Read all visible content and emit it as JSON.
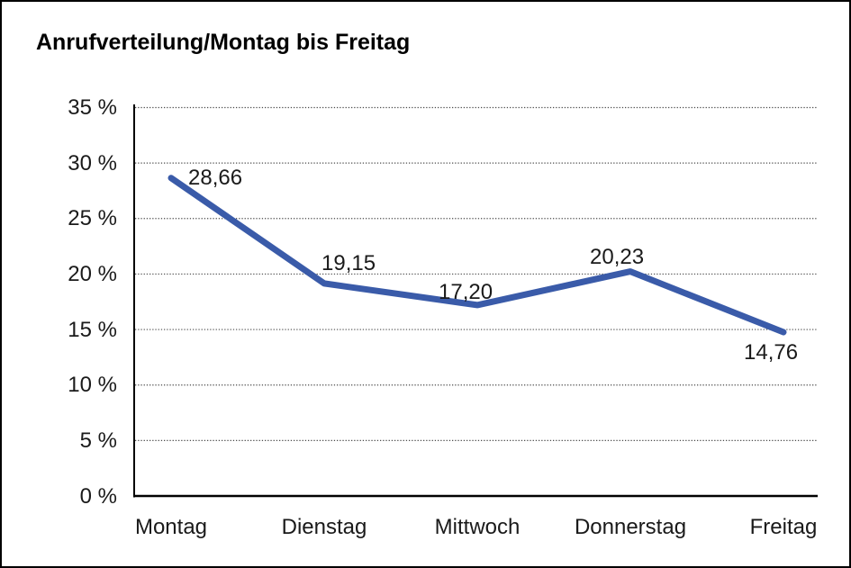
{
  "title": "Anrufverteilung/Montag bis Freitag",
  "chart_data": {
    "type": "line",
    "title": "Anrufverteilung/Montag bis Freitag",
    "categories": [
      "Montag",
      "Dienstag",
      "Mittwoch",
      "Donnerstag",
      "Freitag"
    ],
    "series": [
      {
        "name": "Anrufverteilung",
        "values": [
          28.66,
          19.15,
          17.2,
          20.23,
          14.76
        ]
      }
    ],
    "point_labels": [
      "28,66",
      "19,15",
      "17,20",
      "20,23",
      "14,76"
    ],
    "y_tick_labels": [
      "0 %",
      "5 %",
      "10 %",
      "15 %",
      "20 %",
      "25 %",
      "30 %",
      "35 %"
    ],
    "y_tick_values": [
      0,
      5,
      10,
      15,
      20,
      25,
      30,
      35
    ],
    "ylim": [
      0,
      35
    ],
    "xlabel": "",
    "ylabel": "",
    "grid": "horizontal-dotted",
    "legend": "none",
    "colors": {
      "line": "#3a5ba9",
      "grid": "#4d4d4d",
      "axis": "#000000",
      "text": "#1a1a1a",
      "background": "#ffffff"
    }
  }
}
